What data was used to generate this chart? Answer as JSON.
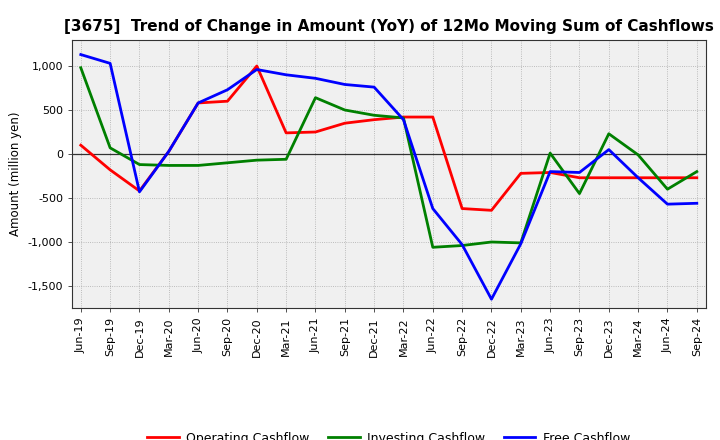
{
  "title": "[3675]  Trend of Change in Amount (YoY) of 12Mo Moving Sum of Cashflows",
  "ylabel": "Amount (million yen)",
  "x_labels": [
    "Jun-19",
    "Sep-19",
    "Dec-19",
    "Mar-20",
    "Jun-20",
    "Sep-20",
    "Dec-20",
    "Mar-21",
    "Jun-21",
    "Sep-21",
    "Dec-21",
    "Mar-22",
    "Jun-22",
    "Sep-22",
    "Dec-22",
    "Mar-23",
    "Jun-23",
    "Sep-23",
    "Dec-23",
    "Mar-24",
    "Jun-24",
    "Sep-24"
  ],
  "operating": [
    100,
    -180,
    -420,
    30,
    580,
    600,
    1000,
    240,
    250,
    350,
    390,
    420,
    420,
    -620,
    -640,
    -220,
    -210,
    -270,
    -270,
    -270,
    -270,
    -270
  ],
  "investing": [
    980,
    70,
    -120,
    -130,
    -130,
    -100,
    -70,
    -60,
    640,
    500,
    440,
    410,
    -1060,
    -1040,
    -1000,
    -1010,
    10,
    -450,
    230,
    -10,
    -400,
    -200
  ],
  "free": [
    1130,
    1030,
    -430,
    30,
    580,
    730,
    960,
    900,
    860,
    790,
    760,
    390,
    -620,
    -1030,
    -1650,
    -1020,
    -200,
    -210,
    50,
    -270,
    -570,
    -560
  ],
  "operating_color": "#ff0000",
  "investing_color": "#008000",
  "free_color": "#0000ff",
  "ylim": [
    -1750,
    1300
  ],
  "yticks": [
    -1500,
    -1000,
    -500,
    0,
    500,
    1000
  ],
  "chart_bg": "#f0f0f0",
  "background_color": "#ffffff",
  "grid_color": "#999999",
  "zero_line_color": "#333333",
  "linewidth": 2.0,
  "title_fontsize": 11,
  "label_fontsize": 8.5,
  "tick_fontsize": 8,
  "legend_fontsize": 9
}
